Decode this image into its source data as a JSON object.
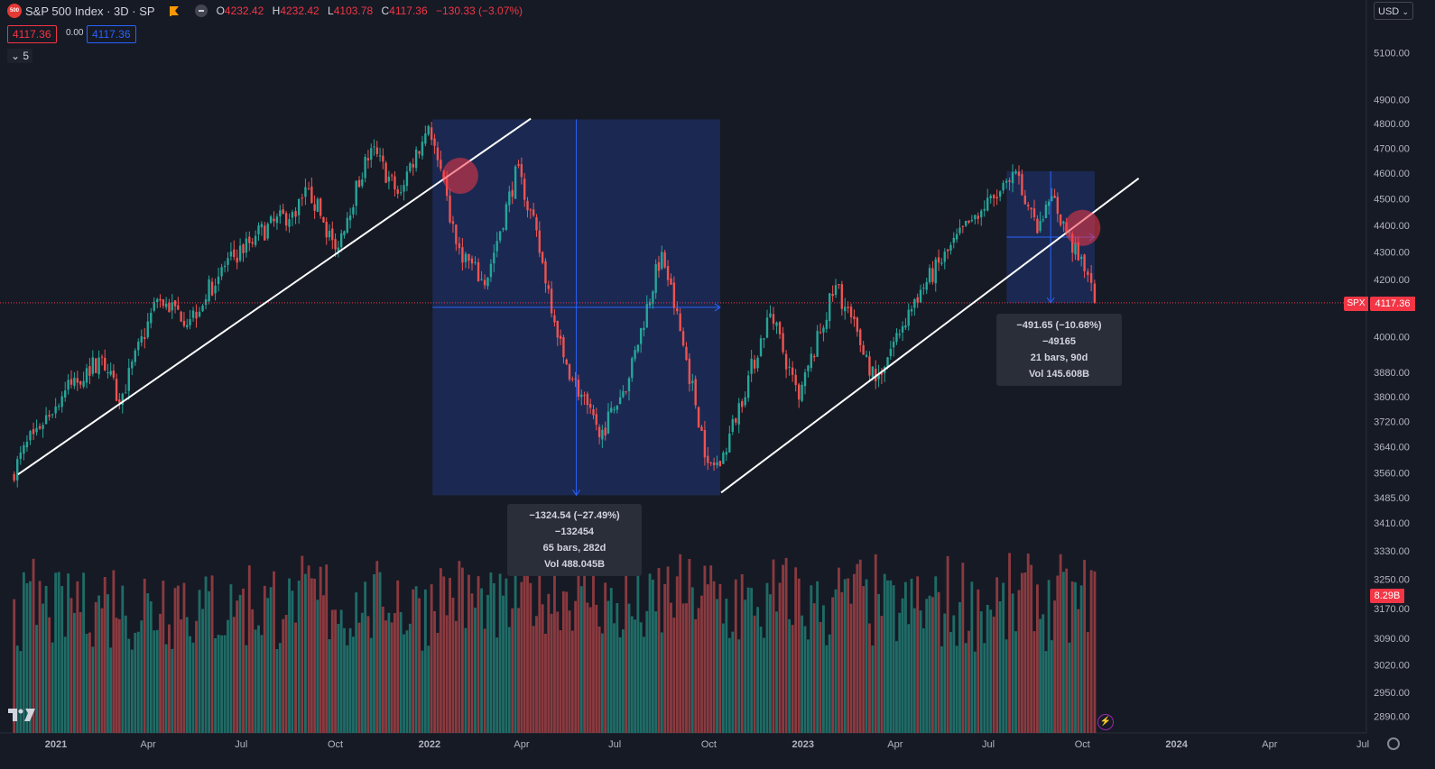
{
  "header": {
    "symbol_badge": "500",
    "title": "S&P 500 Index · 3D · SP",
    "ohlc": [
      {
        "k": "O",
        "v": "4232.42"
      },
      {
        "k": "H",
        "v": "4232.42"
      },
      {
        "k": "L",
        "v": "4103.78"
      },
      {
        "k": "C",
        "v": "4117.36"
      }
    ],
    "change": "−130.33 (−3.07%)",
    "sell_price": "4117.36",
    "spread": "0.00",
    "buy_price": "4117.36",
    "indicator_count": "5",
    "currency": "USD"
  },
  "labels": {
    "symbol": "SPX",
    "last_price": "4117.36",
    "volume": "8.29B"
  },
  "measurements": [
    {
      "line1": "−1324.54 (−27.49%) −132454",
      "line2": "65 bars, 282d",
      "line3": "Vol 488.045B"
    },
    {
      "line1": "−491.65 (−10.68%) −49165",
      "line2": "21 bars, 90d",
      "line3": "Vol 145.608B"
    }
  ],
  "colors": {
    "up": "#26a69a",
    "down": "#ef5350",
    "background": "#161a25",
    "measure_fill": "#1c2d5a",
    "measure_line": "#2962ff",
    "circle": "#f23645"
  },
  "chart_data": {
    "type": "candlestick",
    "interval": "3D",
    "price_scale": "log",
    "y_ticks": [
      5100,
      4900,
      4800,
      4700,
      4600,
      4500,
      4400,
      4300,
      4200,
      4000,
      3880,
      3800,
      3720,
      3640,
      3560,
      3485,
      3410,
      3330,
      3250,
      3170,
      3090,
      3020,
      2950,
      2890
    ],
    "y_tick_labels": [
      "5100.00",
      "4900.00",
      "4800.00",
      "4700.00",
      "4600.00",
      "4500.00",
      "4400.00",
      "4300.00",
      "4200.00",
      "4000.00",
      "3880.00",
      "3800.00",
      "3720.00",
      "3640.00",
      "3560.00",
      "3485.00",
      "3410.00",
      "3330.00",
      "3250.00",
      "3170.00",
      "3090.00",
      "3020.00",
      "2950.00",
      "2890.00"
    ],
    "x_ticks": [
      "2021",
      "Apr",
      "Jul",
      "Oct",
      "2022",
      "Apr",
      "Jul",
      "Oct",
      "2023",
      "Apr",
      "Jul",
      "Oct",
      "2024",
      "Apr",
      "Jul"
    ],
    "x_tick_dates": [
      "2021-01-01",
      "2021-04-01",
      "2021-07-01",
      "2021-10-01",
      "2022-01-01",
      "2022-04-01",
      "2022-07-01",
      "2022-10-01",
      "2023-01-01",
      "2023-04-01",
      "2023-07-01",
      "2023-10-01",
      "2024-01-01",
      "2024-04-01",
      "2024-07-01"
    ],
    "close_path": [
      [
        "2020-11-18",
        3550
      ],
      [
        "2020-12-10",
        3680
      ],
      [
        "2021-01-10",
        3820
      ],
      [
        "2021-02-15",
        3930
      ],
      [
        "2021-03-04",
        3780
      ],
      [
        "2021-04-10",
        4130
      ],
      [
        "2021-05-12",
        4060
      ],
      [
        "2021-06-15",
        4250
      ],
      [
        "2021-07-15",
        4360
      ],
      [
        "2021-08-20",
        4450
      ],
      [
        "2021-09-05",
        4540
      ],
      [
        "2021-10-01",
        4310
      ],
      [
        "2021-11-05",
        4700
      ],
      [
        "2021-12-01",
        4520
      ],
      [
        "2021-12-31",
        4790
      ],
      [
        "2022-01-27",
        4330
      ],
      [
        "2022-02-24",
        4180
      ],
      [
        "2022-03-29",
        4630
      ],
      [
        "2022-05-12",
        3930
      ],
      [
        "2022-06-16",
        3670
      ],
      [
        "2022-07-15",
        3860
      ],
      [
        "2022-08-16",
        4300
      ],
      [
        "2022-09-30",
        3590
      ],
      [
        "2022-10-12",
        3580
      ],
      [
        "2022-11-30",
        4080
      ],
      [
        "2022-12-28",
        3790
      ],
      [
        "2023-02-02",
        4180
      ],
      [
        "2023-03-13",
        3850
      ],
      [
        "2023-04-20",
        4130
      ],
      [
        "2023-06-15",
        4420
      ],
      [
        "2023-07-31",
        4590
      ],
      [
        "2023-08-18",
        4370
      ],
      [
        "2023-09-01",
        4510
      ],
      [
        "2023-09-27",
        4270
      ],
      [
        "2023-10-03",
        4230
      ],
      [
        "2023-10-13",
        4117.36
      ]
    ],
    "trendlines": [
      {
        "from": [
          "2020-11-25",
          3555
        ],
        "to": [
          "2022-04-10",
          4820
        ]
      },
      {
        "from": [
          "2022-10-13",
          3500
        ],
        "to": [
          "2023-11-25",
          4580
        ]
      }
    ],
    "measure_ranges": [
      {
        "from": [
          "2022-01-04",
          4817
        ],
        "to": [
          "2022-10-12",
          3492
        ],
        "change": -1324.54,
        "pct": -27.49,
        "bars": 65,
        "days": 282
      },
      {
        "from": [
          "2023-07-19",
          4608
        ],
        "to": [
          "2023-10-13",
          4117
        ],
        "change": -491.65,
        "pct": -10.68,
        "bars": 21,
        "days": 90
      }
    ],
    "highlights": [
      {
        "date": "2022-01-31",
        "price": 4590
      },
      {
        "date": "2023-10-01",
        "price": 4390
      }
    ],
    "last_price": 4117.36,
    "last_volume": "8.29B"
  }
}
